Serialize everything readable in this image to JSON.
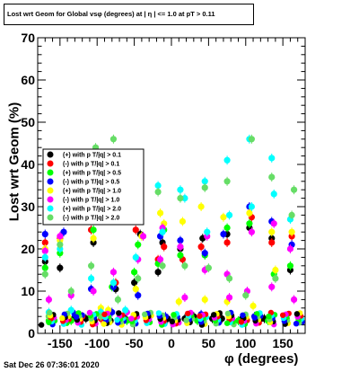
{
  "chart_data": {
    "type": "scatter",
    "title": "Lost wrt Geom for Global vsφ (degrees) at | η | <= 1.0 at pT > 0.11",
    "xlabel": "φ (degrees)",
    "ylabel": "Lost wrt Geom (%)",
    "xlim": [
      -180,
      180
    ],
    "ylim": [
      0,
      70
    ],
    "xticks": [
      -150,
      -100,
      -50,
      0,
      50,
      100,
      150
    ],
    "yticks": [
      0,
      10,
      20,
      30,
      40,
      50,
      60,
      70
    ],
    "grid": false,
    "legend_position": "left-middle",
    "footer": "Sat Dec 26 07:36:01 2020",
    "series": [
      {
        "name": "(+) with p T/|q| > 0.1",
        "color": "#000000",
        "points": [
          [
            -170,
            17
          ],
          [
            -162,
            4
          ],
          [
            -150,
            15.5
          ],
          [
            -142,
            3
          ],
          [
            -130,
            4
          ],
          [
            -115,
            3.5
          ],
          [
            -105,
            21.5
          ],
          [
            -95,
            4
          ],
          [
            -82,
            3
          ],
          [
            -75,
            10.5
          ],
          [
            -62,
            3.5
          ],
          [
            -50,
            12
          ],
          [
            -42,
            23.5
          ],
          [
            -30,
            4
          ],
          [
            -18,
            14.5
          ],
          [
            -12,
            21.5
          ],
          [
            -5,
            3.5
          ],
          [
            12,
            20
          ],
          [
            18,
            3.5
          ],
          [
            30,
            4
          ],
          [
            42,
            22.5
          ],
          [
            55,
            3.5
          ],
          [
            68,
            3.5
          ],
          [
            75,
            23.5
          ],
          [
            95,
            3.5
          ],
          [
            105,
            25
          ],
          [
            112,
            4
          ],
          [
            125,
            3.5
          ],
          [
            135,
            22.5
          ],
          [
            155,
            3.5
          ],
          [
            160,
            15
          ]
        ]
      },
      {
        "name": "(-) with p T/|q| > 0.1",
        "color": "#ff0000",
        "points": [
          [
            -170,
            21.5
          ],
          [
            -150,
            22.5
          ],
          [
            -142,
            3.5
          ],
          [
            -120,
            4
          ],
          [
            -108,
            24.5
          ],
          [
            -95,
            3.5
          ],
          [
            -75,
            12
          ],
          [
            -48,
            24.5
          ],
          [
            -18,
            17.5
          ],
          [
            -10,
            20.5
          ],
          [
            15,
            17.5
          ],
          [
            40,
            20.5
          ],
          [
            75,
            21.5
          ],
          [
            108,
            27.5
          ],
          [
            135,
            21.5
          ],
          [
            162,
            23
          ]
        ]
      },
      {
        "name": "(+) with p T/|q| > 0.5",
        "color": "#00ff00",
        "points": [
          [
            -170,
            15.5
          ],
          [
            -165,
            3
          ],
          [
            -150,
            19
          ],
          [
            -135,
            3
          ],
          [
            -105,
            24.5
          ],
          [
            -85,
            3.5
          ],
          [
            -80,
            11
          ],
          [
            -60,
            3
          ],
          [
            -50,
            14.5
          ],
          [
            -45,
            21
          ],
          [
            -18,
            16.5
          ],
          [
            -10,
            24.5
          ],
          [
            12,
            18.5
          ],
          [
            35,
            3
          ],
          [
            45,
            18.5
          ],
          [
            75,
            25
          ],
          [
            90,
            3
          ],
          [
            105,
            26
          ],
          [
            130,
            3
          ],
          [
            138,
            14
          ],
          [
            160,
            16
          ]
        ]
      },
      {
        "name": "(-) with p T/|q| > 0.5",
        "color": "#0000ff",
        "points": [
          [
            -170,
            23.5
          ],
          [
            -145,
            24
          ],
          [
            -130,
            4.5
          ],
          [
            -108,
            10.5
          ],
          [
            -80,
            5
          ],
          [
            -78,
            11
          ],
          [
            -45,
            9
          ],
          [
            -15,
            23
          ],
          [
            -8,
            4
          ],
          [
            12,
            22
          ],
          [
            40,
            4.5
          ],
          [
            45,
            19
          ],
          [
            70,
            23.5
          ],
          [
            105,
            30
          ],
          [
            112,
            4
          ],
          [
            135,
            26.5
          ],
          [
            162,
            21
          ]
        ]
      },
      {
        "name": "(+) with p T/|q| > 1.0",
        "color": "#ffff00",
        "points": [
          [
            -170,
            20
          ],
          [
            -165,
            4
          ],
          [
            -150,
            22
          ],
          [
            -140,
            3.5
          ],
          [
            -105,
            22.5
          ],
          [
            -95,
            6
          ],
          [
            -85,
            5.5
          ],
          [
            -78,
            12
          ],
          [
            -48,
            10.5
          ],
          [
            -40,
            23
          ],
          [
            -15,
            28.5
          ],
          [
            -10,
            26
          ],
          [
            10,
            7.5
          ],
          [
            15,
            26.5
          ],
          [
            40,
            30
          ],
          [
            45,
            8
          ],
          [
            70,
            27.5
          ],
          [
            75,
            7.5
          ],
          [
            105,
            28.5
          ],
          [
            110,
            6.5
          ],
          [
            135,
            24
          ],
          [
            140,
            15
          ],
          [
            162,
            24
          ]
        ]
      },
      {
        "name": "(-) with p T/|q| > 1.0",
        "color": "#ff00ff",
        "points": [
          [
            -170,
            19.5
          ],
          [
            -165,
            8
          ],
          [
            -150,
            23
          ],
          [
            -135,
            9
          ],
          [
            -105,
            10
          ],
          [
            -95,
            5
          ],
          [
            -78,
            14.5
          ],
          [
            -60,
            5
          ],
          [
            -45,
            17.5
          ],
          [
            -38,
            23
          ],
          [
            -15,
            17.5
          ],
          [
            -12,
            25
          ],
          [
            12,
            20.5
          ],
          [
            18,
            8.5
          ],
          [
            45,
            15
          ],
          [
            48,
            23
          ],
          [
            75,
            14
          ],
          [
            78,
            8.5
          ],
          [
            102,
            10
          ],
          [
            108,
            24
          ],
          [
            135,
            11
          ],
          [
            138,
            26
          ],
          [
            160,
            20
          ],
          [
            165,
            8
          ]
        ]
      },
      {
        "name": "(+) with p T/|q| > 2.0",
        "color": "#00ffff",
        "points": [
          [
            -170,
            18
          ],
          [
            -165,
            5
          ],
          [
            -150,
            20
          ],
          [
            -135,
            5.5
          ],
          [
            -108,
            13
          ],
          [
            -95,
            5
          ],
          [
            -78,
            12
          ],
          [
            -62,
            5.5
          ],
          [
            -48,
            18
          ],
          [
            -18,
            35
          ],
          [
            -12,
            24
          ],
          [
            12,
            34
          ],
          [
            18,
            32
          ],
          [
            45,
            36
          ],
          [
            48,
            24
          ],
          [
            75,
            41
          ],
          [
            78,
            28
          ],
          [
            105,
            46
          ],
          [
            108,
            30
          ],
          [
            135,
            41.5
          ],
          [
            138,
            33
          ],
          [
            160,
            27
          ]
        ]
      },
      {
        "name": "(-) with p T/|q| > 2.0",
        "color": "#66dd66",
        "points": [
          [
            -170,
            14
          ],
          [
            -165,
            4
          ],
          [
            -150,
            21
          ],
          [
            -135,
            10
          ],
          [
            -108,
            16
          ],
          [
            -102,
            44
          ],
          [
            -95,
            4
          ],
          [
            -78,
            46
          ],
          [
            -72,
            8
          ],
          [
            -48,
            27
          ],
          [
            -45,
            13
          ],
          [
            -18,
            33.5
          ],
          [
            -12,
            16
          ],
          [
            12,
            32
          ],
          [
            18,
            16
          ],
          [
            45,
            34.5
          ],
          [
            50,
            15.5
          ],
          [
            75,
            36
          ],
          [
            78,
            13
          ],
          [
            100,
            9
          ],
          [
            108,
            46
          ],
          [
            135,
            37
          ],
          [
            140,
            13
          ],
          [
            162,
            28
          ],
          [
            165,
            34
          ]
        ]
      }
    ]
  }
}
